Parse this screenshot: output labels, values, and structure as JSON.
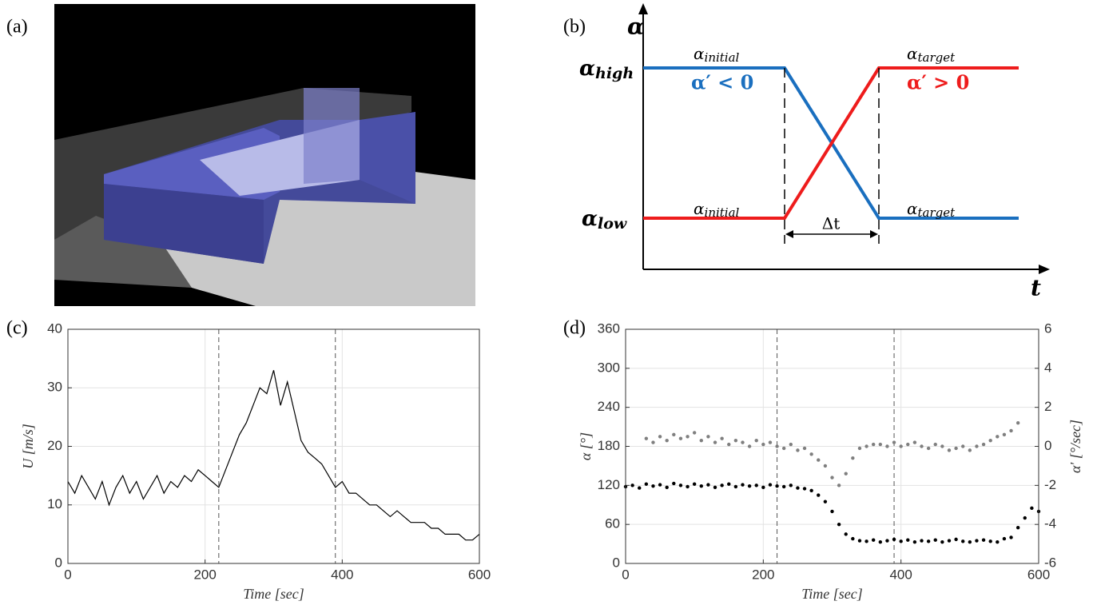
{
  "panels": {
    "a": "(a)",
    "b": "(b)",
    "c": "(c)",
    "d": "(d)"
  },
  "diagram": {
    "axis_y": "α",
    "axis_x": "t",
    "delta": "Δt",
    "alpha_high": {
      "base": "α",
      "sub": "high"
    },
    "alpha_low": {
      "base": "α",
      "sub": "low"
    },
    "blue_start": {
      "base": "α",
      "sub": "initial"
    },
    "blue_rate": "α′ < 0",
    "blue_end": {
      "base": "α",
      "sub": "target"
    },
    "red_start": {
      "base": "α",
      "sub": "initial"
    },
    "red_rate": "α′ > 0",
    "red_end": {
      "base": "α",
      "sub": "target"
    }
  },
  "chart_data": [
    {
      "type": "line",
      "xlabel": "Time [sec]",
      "ylabel": "U [m/s]",
      "xlim": [
        0,
        600
      ],
      "xticks": [
        0,
        200,
        400,
        600
      ],
      "ylim": [
        0,
        40
      ],
      "yticks": [
        0,
        10,
        20,
        30,
        40
      ],
      "grid": true,
      "vlines": [
        220,
        390
      ],
      "series": [
        {
          "color": "#000000",
          "x": [
            0,
            10,
            20,
            30,
            40,
            50,
            60,
            70,
            80,
            90,
            100,
            110,
            120,
            130,
            140,
            150,
            160,
            170,
            180,
            190,
            200,
            210,
            220,
            230,
            240,
            250,
            260,
            270,
            280,
            290,
            300,
            310,
            320,
            330,
            340,
            350,
            360,
            370,
            380,
            390,
            400,
            410,
            420,
            430,
            440,
            450,
            460,
            470,
            480,
            490,
            500,
            510,
            520,
            530,
            540,
            550,
            560,
            570,
            580,
            590,
            600
          ],
          "values": [
            14,
            12,
            15,
            13,
            11,
            14,
            10,
            13,
            15,
            12,
            14,
            11,
            13,
            15,
            12,
            14,
            13,
            15,
            14,
            16,
            15,
            14,
            13,
            16,
            19,
            22,
            24,
            27,
            30,
            29,
            33,
            27,
            31,
            26,
            21,
            19,
            18,
            17,
            15,
            13,
            14,
            12,
            12,
            11,
            10,
            10,
            9,
            8,
            9,
            8,
            7,
            7,
            7,
            6,
            6,
            5,
            5,
            5,
            4,
            4,
            5
          ]
        }
      ]
    },
    {
      "type": "scatter",
      "xlabel": "Time [sec]",
      "ylabel": "α [°]",
      "y2label": "α′ [°/sec]",
      "xlim": [
        0,
        600
      ],
      "xticks": [
        0,
        200,
        400,
        600
      ],
      "ylim": [
        0,
        360
      ],
      "yticks": [
        0,
        60,
        120,
        180,
        240,
        300,
        360
      ],
      "y2lim": [
        -6,
        6
      ],
      "y2ticks": [
        -6,
        -4,
        -2,
        0,
        2,
        4,
        6
      ],
      "grid": true,
      "vlines": [
        220,
        390
      ],
      "series": [
        {
          "color": "#000000",
          "x": [
            0,
            10,
            20,
            30,
            40,
            50,
            60,
            70,
            80,
            90,
            100,
            110,
            120,
            130,
            140,
            150,
            160,
            170,
            180,
            190,
            200,
            210,
            220,
            230,
            240,
            250,
            260,
            270,
            280,
            290,
            300,
            310,
            320,
            330,
            340,
            350,
            360,
            370,
            380,
            390,
            400,
            410,
            420,
            430,
            440,
            450,
            460,
            470,
            480,
            490,
            500,
            510,
            520,
            530,
            540,
            550,
            560,
            570,
            580,
            590,
            600
          ],
          "values": [
            118,
            120,
            116,
            122,
            119,
            121,
            117,
            123,
            120,
            118,
            122,
            119,
            121,
            117,
            120,
            122,
            118,
            121,
            119,
            120,
            117,
            121,
            119,
            118,
            120,
            116,
            115,
            112,
            105,
            95,
            80,
            60,
            45,
            38,
            35,
            34,
            36,
            33,
            35,
            37,
            34,
            36,
            33,
            35,
            34,
            36,
            33,
            35,
            37,
            34,
            33,
            35,
            36,
            34,
            33,
            38,
            40,
            55,
            70,
            85,
            80
          ]
        },
        {
          "color": "#7f7f7f",
          "axis": "y2",
          "x": [
            30,
            40,
            50,
            60,
            70,
            80,
            90,
            100,
            110,
            120,
            130,
            140,
            150,
            160,
            170,
            180,
            190,
            200,
            210,
            220,
            230,
            240,
            250,
            260,
            270,
            280,
            290,
            300,
            310,
            320,
            330,
            340,
            350,
            360,
            370,
            380,
            390,
            400,
            410,
            420,
            430,
            440,
            450,
            460,
            470,
            480,
            490,
            500,
            510,
            520,
            530,
            540,
            550,
            560,
            570
          ],
          "values": [
            0.4,
            0.2,
            0.5,
            0.3,
            0.6,
            0.4,
            0.5,
            0.7,
            0.3,
            0.5,
            0.2,
            0.4,
            0.1,
            0.3,
            0.2,
            0.0,
            0.3,
            0.1,
            0.2,
            0.0,
            -0.1,
            0.1,
            -0.2,
            -0.1,
            -0.4,
            -0.7,
            -1.0,
            -1.6,
            -2.0,
            -1.4,
            -0.6,
            -0.1,
            0.0,
            0.1,
            0.1,
            0.0,
            0.2,
            0.0,
            0.1,
            0.2,
            0.0,
            -0.1,
            0.1,
            0.0,
            -0.2,
            -0.1,
            0.0,
            -0.2,
            0.0,
            0.1,
            0.3,
            0.5,
            0.6,
            0.8,
            1.2
          ]
        }
      ]
    }
  ]
}
